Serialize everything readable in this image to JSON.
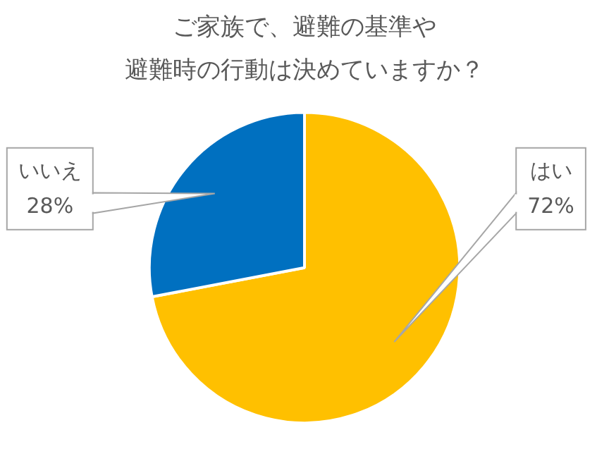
{
  "chart_data": {
    "type": "pie",
    "title": "ご家族で、避難の基準や",
    "subtitle": "避難時の行動は決めていますか？",
    "categories": [
      "はい",
      "いいえ"
    ],
    "values": [
      72,
      28
    ],
    "colors": [
      "#ffc000",
      "#0070c0"
    ],
    "value_labels": [
      "72%",
      "28%"
    ],
    "legend": false
  }
}
